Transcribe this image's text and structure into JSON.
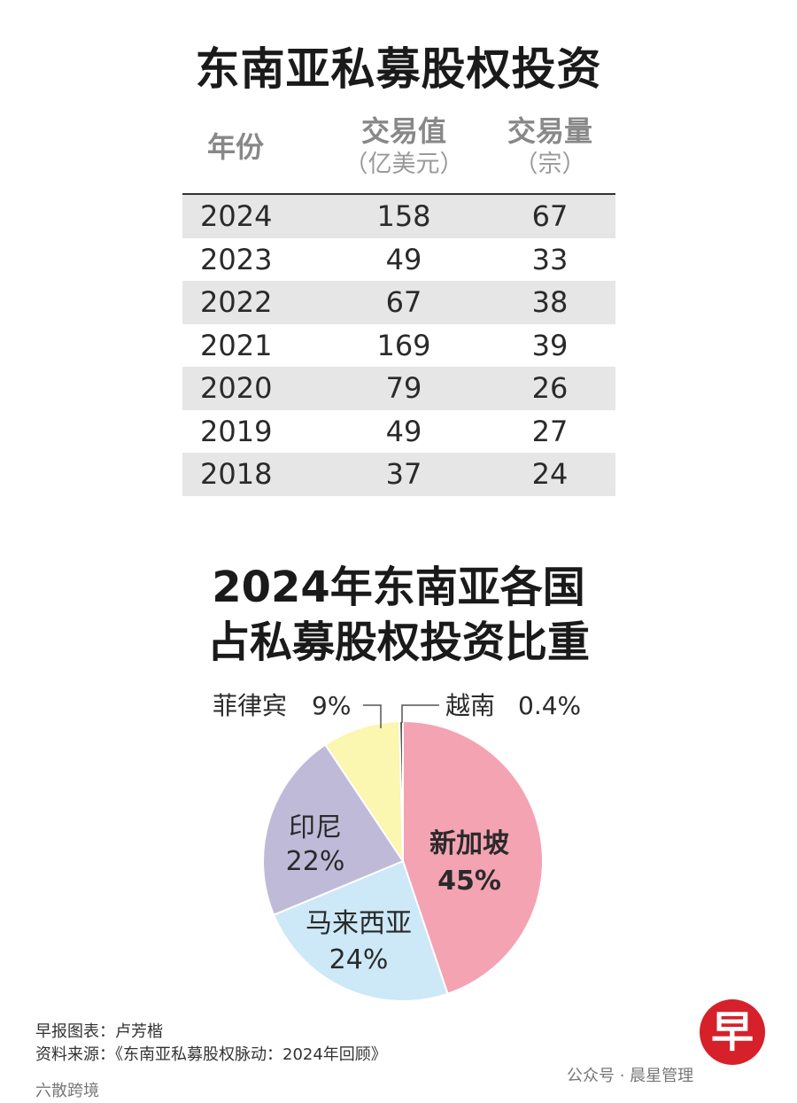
{
  "table_title": "东南亚私募股权投资",
  "headers": {
    "year": "年份",
    "value": "交易值",
    "value_unit": "（亿美元）",
    "volume": "交易量",
    "volume_unit": "（宗）"
  },
  "pie_title_line1": "2024年东南亚各国",
  "pie_title_line2": "占私募股权投资比重",
  "chart_data": [
    {
      "type": "table",
      "title": "东南亚私募股权投资",
      "columns": [
        "年份",
        "交易值（亿美元）",
        "交易量（宗）"
      ],
      "rows": [
        [
          "2024",
          "158",
          "67"
        ],
        [
          "2023",
          "49",
          "33"
        ],
        [
          "2022",
          "67",
          "38"
        ],
        [
          "2021",
          "169",
          "39"
        ],
        [
          "2020",
          "79",
          "26"
        ],
        [
          "2019",
          "49",
          "27"
        ],
        [
          "2018",
          "37",
          "24"
        ]
      ]
    },
    {
      "type": "pie",
      "title": "2024年东南亚各国占私募股权投资比重",
      "slices": [
        {
          "name": "新加坡",
          "label": "45%",
          "value": 45,
          "color": "#f4a3b3",
          "bold": true
        },
        {
          "name": "马来西亚",
          "label": "24%",
          "value": 24,
          "color": "#cde8f7",
          "bold": false
        },
        {
          "name": "印尼",
          "label": "22%",
          "value": 22,
          "color": "#c0bad9",
          "bold": false
        },
        {
          "name": "菲律宾",
          "label": "9%",
          "value": 9,
          "color": "#fbf6b0",
          "bold": false
        },
        {
          "name": "越南",
          "label": "0.4%",
          "value": 0.4,
          "color": "#555555",
          "bold": false
        }
      ]
    }
  ],
  "footer": {
    "credit": "早报图表：卢芳楷",
    "source": "资料来源：《东南亚私募股权脉动：2024年回顾》"
  },
  "watermark": {
    "left": "六散跨境",
    "right": "公众号 · 晨星管理"
  },
  "logo_char": "早"
}
